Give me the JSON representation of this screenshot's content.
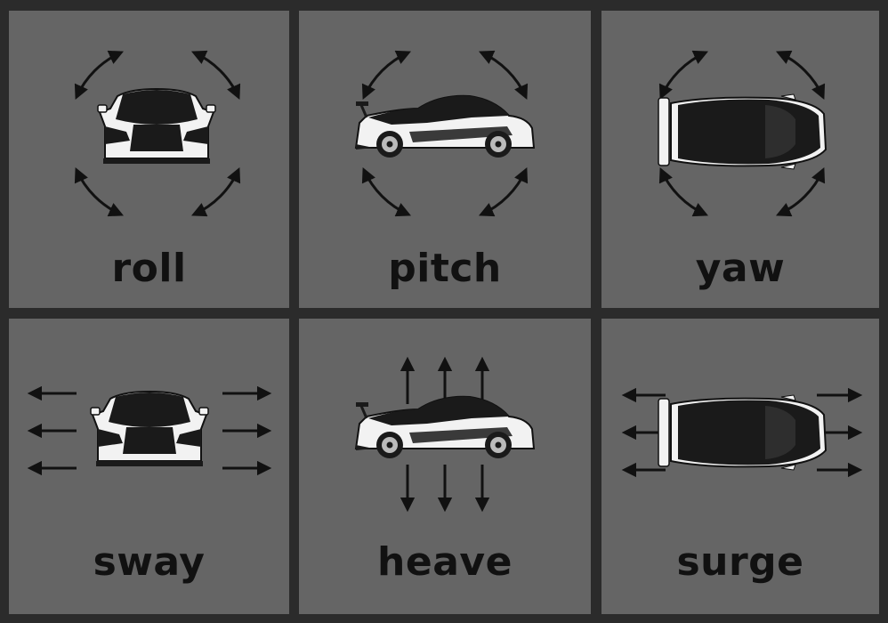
{
  "panels": [
    {
      "key": "roll",
      "label": "roll",
      "car_view": "car-front-icon",
      "motion": "rotation-arrows"
    },
    {
      "key": "pitch",
      "label": "pitch",
      "car_view": "car-side-icon",
      "motion": "rotation-arrows"
    },
    {
      "key": "yaw",
      "label": "yaw",
      "car_view": "car-top-icon",
      "motion": "rotation-arrows"
    },
    {
      "key": "sway",
      "label": "sway",
      "car_view": "car-front-icon",
      "motion": "horizontal-arrows"
    },
    {
      "key": "heave",
      "label": "heave",
      "car_view": "car-side-icon",
      "motion": "vertical-arrows"
    },
    {
      "key": "surge",
      "label": "surge",
      "car_view": "car-top-icon",
      "motion": "horizontal-arrows"
    }
  ],
  "colors": {
    "background": "#2b2b2b",
    "panel": "#656565",
    "ink": "#111111",
    "car_body": "#1a1a1a",
    "car_white": "#f2f2f2"
  }
}
